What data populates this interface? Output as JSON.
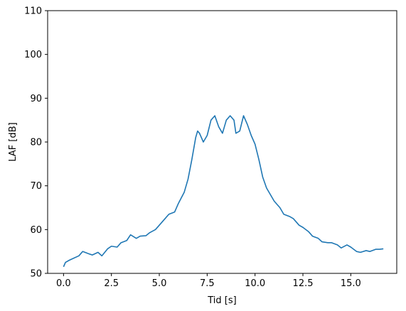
{
  "chart_data": {
    "type": "line",
    "xlabel": "Tid [s]",
    "ylabel": "LAF [dB]",
    "xlim": [
      -0.83,
      17.4
    ],
    "ylim": [
      50,
      110
    ],
    "xticks": [
      0.0,
      2.5,
      5.0,
      7.5,
      10.0,
      12.5,
      15.0
    ],
    "xtick_labels": [
      "0.0",
      "2.5",
      "5.0",
      "7.5",
      "10.0",
      "12.5",
      "15.0"
    ],
    "yticks": [
      50,
      60,
      70,
      80,
      90,
      100,
      110
    ],
    "ytick_labels": [
      "50",
      "60",
      "70",
      "80",
      "90",
      "100",
      "110"
    ],
    "grid": false,
    "series": [
      {
        "color": "#1f77b4",
        "x": [
          0.0,
          0.1,
          0.3,
          0.5,
          0.8,
          1.0,
          1.3,
          1.5,
          1.8,
          2.0,
          2.3,
          2.5,
          2.8,
          3.0,
          3.3,
          3.5,
          3.8,
          4.0,
          4.3,
          4.5,
          4.8,
          5.0,
          5.3,
          5.5,
          5.8,
          6.0,
          6.3,
          6.5,
          6.7,
          6.9,
          7.0,
          7.1,
          7.3,
          7.5,
          7.7,
          7.9,
          8.1,
          8.3,
          8.5,
          8.7,
          8.9,
          9.0,
          9.2,
          9.4,
          9.6,
          9.8,
          10.0,
          10.2,
          10.4,
          10.6,
          10.8,
          11.0,
          11.3,
          11.5,
          11.8,
          12.0,
          12.3,
          12.5,
          12.8,
          13.0,
          13.3,
          13.5,
          13.8,
          14.0,
          14.3,
          14.5,
          14.8,
          15.0,
          15.3,
          15.5,
          15.8,
          16.0,
          16.3,
          16.5,
          16.7
        ],
        "y": [
          51.5,
          52.5,
          53.0,
          53.4,
          54.0,
          55.0,
          54.5,
          54.2,
          54.8,
          54.0,
          55.6,
          56.2,
          56.0,
          57.0,
          57.5,
          58.8,
          58.0,
          58.5,
          58.6,
          59.3,
          60.0,
          61.0,
          62.5,
          63.5,
          64.0,
          66.0,
          68.5,
          71.5,
          76.0,
          81.0,
          82.5,
          82.0,
          80.0,
          81.5,
          85.0,
          86.0,
          83.5,
          82.0,
          85.0,
          86.0,
          85.0,
          82.0,
          82.5,
          86.0,
          84.0,
          81.5,
          79.5,
          76.0,
          72.0,
          69.5,
          68.0,
          66.5,
          65.0,
          63.5,
          63.0,
          62.5,
          61.0,
          60.5,
          59.5,
          58.5,
          58.0,
          57.2,
          57.0,
          57.0,
          56.5,
          55.8,
          56.5,
          56.0,
          55.0,
          54.8,
          55.2,
          55.0,
          55.5,
          55.5,
          55.6
        ]
      }
    ]
  }
}
